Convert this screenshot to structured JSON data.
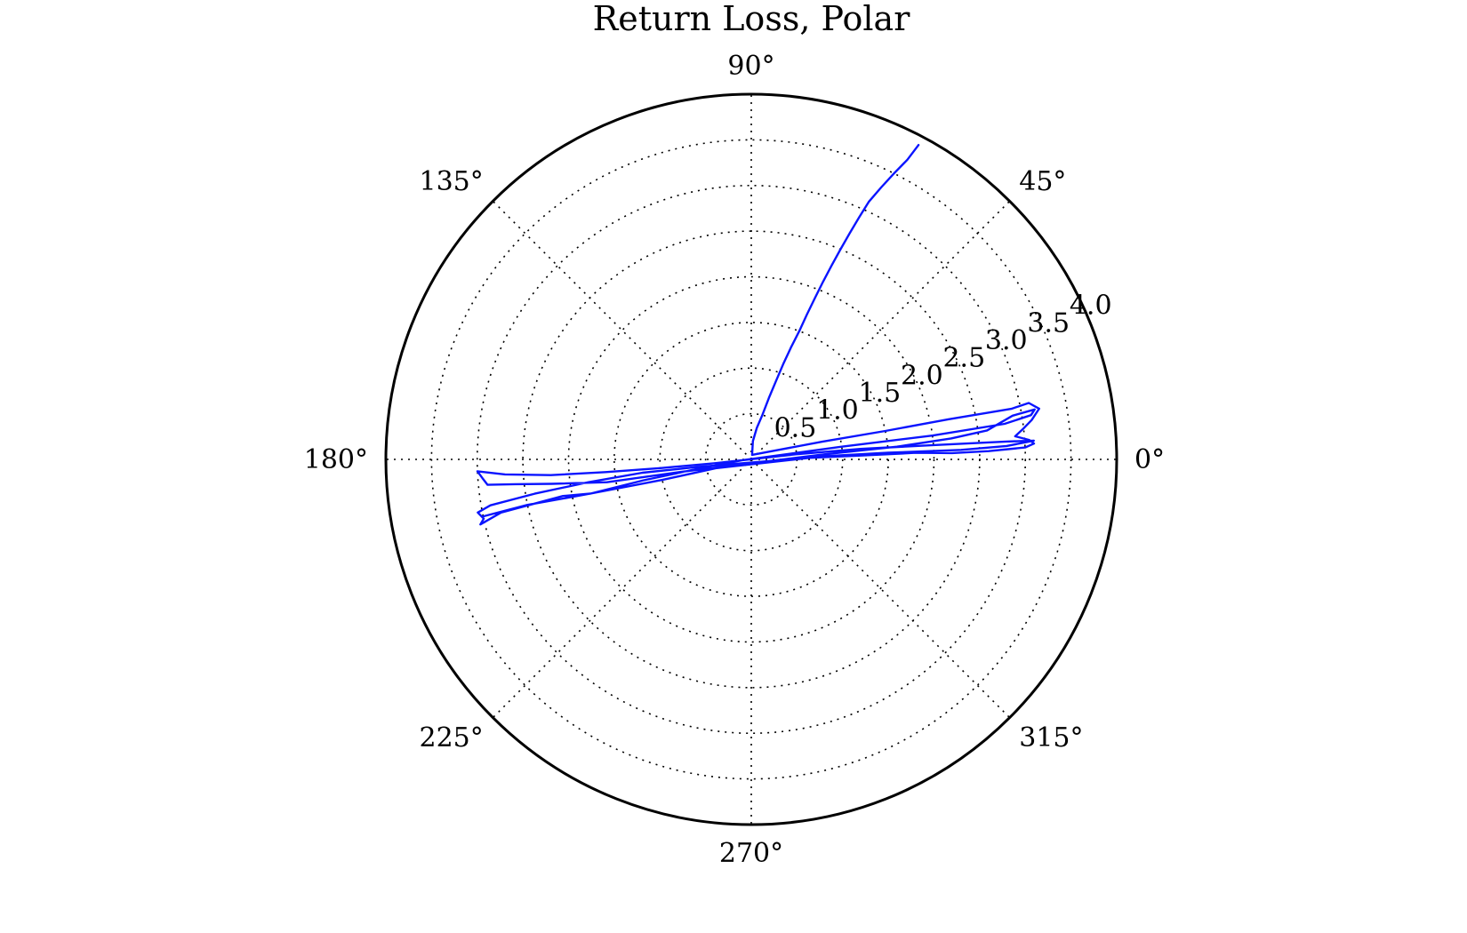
{
  "chart_data": {
    "type": "line",
    "projection": "polar",
    "title": "Return Loss, Polar",
    "theta_ticks": [
      {
        "value": 0,
        "label": "0°"
      },
      {
        "value": 45,
        "label": "45°"
      },
      {
        "value": 90,
        "label": "90°"
      },
      {
        "value": 135,
        "label": "135°"
      },
      {
        "value": 180,
        "label": "180°"
      },
      {
        "value": 225,
        "label": "225°"
      },
      {
        "value": 270,
        "label": "270°"
      },
      {
        "value": 315,
        "label": "315°"
      }
    ],
    "r_ticks": [
      {
        "value": 0.5,
        "label": "0.5"
      },
      {
        "value": 1.0,
        "label": "1.0"
      },
      {
        "value": 1.5,
        "label": "1.5"
      },
      {
        "value": 2.0,
        "label": "2.0"
      },
      {
        "value": 2.5,
        "label": "2.5"
      },
      {
        "value": 3.0,
        "label": "3.0"
      },
      {
        "value": 3.5,
        "label": "3.5"
      },
      {
        "value": 4.0,
        "label": "4.0"
      }
    ],
    "rlim": [
      0,
      4.0
    ],
    "grid": true,
    "colors": {
      "series": "#0a14ff",
      "frame": "#000000"
    },
    "series": [
      {
        "points": [
          [
            62.0,
            3.9
          ],
          [
            62.5,
            3.7
          ],
          [
            63.5,
            3.5
          ],
          [
            64.5,
            3.3
          ],
          [
            65.5,
            3.1
          ],
          [
            66.0,
            2.9
          ],
          [
            66.5,
            2.7
          ],
          [
            67.0,
            2.5
          ],
          [
            67.5,
            2.3
          ],
          [
            68.0,
            2.1
          ],
          [
            68.5,
            1.9
          ],
          [
            69.0,
            1.7
          ],
          [
            69.5,
            1.5
          ],
          [
            70.5,
            1.3
          ],
          [
            71.5,
            1.1
          ],
          [
            72.5,
            0.9
          ],
          [
            74.0,
            0.7
          ],
          [
            76.0,
            0.5
          ],
          [
            80.0,
            0.35
          ],
          [
            85.0,
            0.2
          ],
          [
            80.0,
            0.05
          ],
          [
            14.0,
            0.8
          ],
          [
            12.0,
            1.5
          ],
          [
            11.5,
            2.2
          ],
          [
            11.0,
            2.9
          ],
          [
            11.5,
            3.1
          ],
          [
            10.0,
            3.2
          ],
          [
            8.0,
            3.1
          ],
          [
            6.5,
            3.0
          ],
          [
            5.0,
            2.9
          ],
          [
            4.0,
            3.05
          ],
          [
            3.2,
            3.1
          ],
          [
            2.5,
            3.0
          ],
          [
            2.0,
            2.6
          ],
          [
            1.8,
            2.2
          ],
          [
            2.3,
            1.8
          ],
          [
            2.0,
            1.2
          ],
          [
            1.5,
            0.6
          ],
          [
            188.0,
            0.6
          ],
          [
            187.0,
            1.2
          ],
          [
            188.0,
            1.8
          ],
          [
            189.0,
            2.4
          ],
          [
            190.0,
            2.9
          ],
          [
            191.0,
            3.05
          ],
          [
            192.5,
            3.0
          ],
          [
            193.5,
            3.05
          ],
          [
            192.0,
            2.8
          ],
          [
            191.5,
            2.4
          ],
          [
            191.0,
            2.1
          ],
          [
            192.0,
            1.8
          ],
          [
            191.0,
            1.2
          ],
          [
            190.0,
            0.6
          ],
          [
            185.0,
            0.1
          ],
          [
            8.0,
            1.0
          ],
          [
            7.5,
            2.0
          ],
          [
            8.0,
            2.8
          ],
          [
            9.0,
            3.1
          ],
          [
            10.0,
            3.15
          ],
          [
            9.5,
            2.9
          ],
          [
            7.0,
            2.6
          ],
          [
            6.0,
            2.2
          ],
          [
            5.0,
            1.6
          ],
          [
            4.0,
            0.8
          ],
          [
            190.0,
            0.8
          ],
          [
            189.0,
            1.6
          ],
          [
            187.0,
            2.2
          ],
          [
            186.0,
            2.6
          ],
          [
            185.5,
            2.9
          ],
          [
            184.0,
            2.95
          ],
          [
            182.5,
            3.0
          ],
          [
            183.5,
            2.7
          ],
          [
            184.5,
            2.2
          ],
          [
            185.0,
            1.6
          ],
          [
            185.5,
            1.0
          ],
          [
            186.0,
            0.4
          ],
          [
            6.5,
            0.5
          ],
          [
            5.5,
            1.2
          ],
          [
            4.5,
            2.0
          ],
          [
            4.0,
            2.8
          ],
          [
            3.8,
            3.1
          ],
          [
            3.0,
            2.8
          ],
          [
            2.6,
            2.3
          ],
          [
            2.8,
            1.5
          ],
          [
            2.5,
            0.8
          ],
          [
            194.0,
            0.4
          ],
          [
            193.0,
            1.0
          ],
          [
            192.0,
            1.8
          ],
          [
            191.5,
            2.5
          ],
          [
            192.0,
            3.0
          ]
        ]
      }
    ]
  }
}
